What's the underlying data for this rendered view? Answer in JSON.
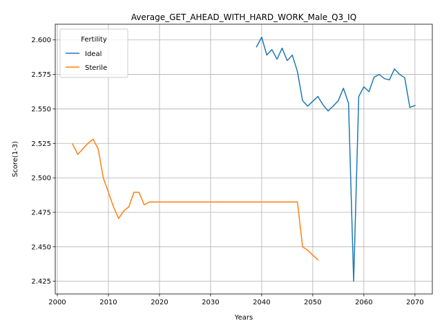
{
  "chart_data": {
    "type": "line",
    "title": "Average_GET_AHEAD_WITH_HARD_WORK_Male_Q3_IQ",
    "xlabel": "Years",
    "ylabel": "Score(1-3)",
    "xlim": [
      1999.6,
      2073.4
    ],
    "ylim": [
      2.4158,
      2.6114
    ],
    "xticks": [
      2000,
      2010,
      2020,
      2030,
      2040,
      2050,
      2060,
      2070
    ],
    "xtick_labels": [
      "2000",
      "2010",
      "2020",
      "2030",
      "2040",
      "2050",
      "2060",
      "2070"
    ],
    "yticks": [
      2.425,
      2.45,
      2.475,
      2.5,
      2.525,
      2.55,
      2.575,
      2.6
    ],
    "ytick_labels": [
      "2.425",
      "2.450",
      "2.475",
      "2.500",
      "2.525",
      "2.550",
      "2.575",
      "2.600"
    ],
    "grid": true,
    "legend": {
      "title": "Fertility",
      "placement": "upper-left"
    },
    "series": [
      {
        "name": "Ideal",
        "color": "#1f77b4",
        "x": [
          2039,
          2040,
          2041,
          2042,
          2043,
          2044,
          2045,
          2046,
          2047,
          2048,
          2049,
          2050,
          2051,
          2052,
          2053,
          2054,
          2055,
          2056,
          2057,
          2058,
          2059,
          2060,
          2061,
          2062,
          2063,
          2064,
          2065,
          2066,
          2067,
          2068,
          2069,
          2070
        ],
        "y": [
          2.595,
          2.602,
          2.589,
          2.593,
          2.586,
          2.594,
          2.585,
          2.589,
          2.577,
          2.556,
          2.552,
          2.5555,
          2.559,
          2.553,
          2.5485,
          2.552,
          2.556,
          2.565,
          2.554,
          2.425,
          2.559,
          2.566,
          2.5625,
          2.573,
          2.575,
          2.572,
          2.571,
          2.579,
          2.575,
          2.5725,
          2.551,
          2.5525
        ]
      },
      {
        "name": "Sterile",
        "color": "#ff7f0e",
        "x": [
          2003,
          2004,
          2005,
          2006,
          2007,
          2008,
          2009,
          2010,
          2011,
          2012,
          2013,
          2014,
          2015,
          2016,
          2017,
          2018,
          2019,
          2020,
          2025,
          2030,
          2035,
          2040,
          2045,
          2047,
          2048,
          2049,
          2050,
          2051
        ],
        "y": [
          2.5245,
          2.517,
          2.521,
          2.525,
          2.528,
          2.521,
          2.5,
          2.4895,
          2.479,
          2.4705,
          2.476,
          2.479,
          2.4895,
          2.4895,
          2.4805,
          2.4825,
          2.4825,
          2.4825,
          2.4825,
          2.4825,
          2.4825,
          2.4825,
          2.4825,
          2.4825,
          2.45,
          2.4475,
          2.444,
          2.4405
        ]
      }
    ]
  }
}
